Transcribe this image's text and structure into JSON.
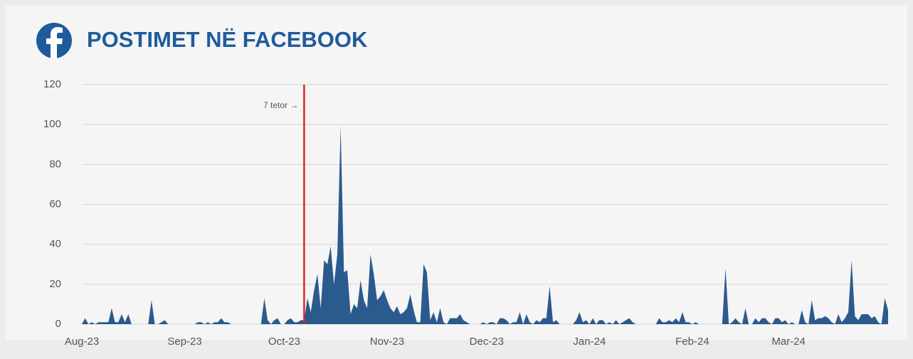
{
  "chart_data": {
    "type": "area",
    "title": "POSTIMET NË FACEBOOK",
    "categories": [
      "Aug-23",
      null,
      null,
      null,
      null,
      null,
      null,
      null,
      null,
      null,
      null,
      null,
      null,
      null,
      null,
      null,
      null,
      null,
      null,
      null,
      null,
      null,
      null,
      null,
      null,
      null,
      null,
      null,
      null,
      null,
      null,
      "Sep-23",
      null,
      null,
      null,
      null,
      null,
      null,
      null,
      null,
      null,
      null,
      null,
      null,
      null,
      null,
      null,
      null,
      null,
      null,
      null,
      null,
      null,
      null,
      null,
      null,
      null,
      null,
      null,
      null,
      null,
      "Oct-23",
      null,
      null,
      null,
      null,
      null,
      null,
      null,
      null,
      null,
      null,
      null,
      null,
      null,
      null,
      null,
      null,
      null,
      null,
      null,
      null,
      null,
      null,
      null,
      null,
      null,
      null,
      null,
      null,
      null,
      null,
      "Nov-23",
      null,
      null,
      null,
      null,
      null,
      null,
      null,
      null,
      null,
      null,
      null,
      null,
      null,
      null,
      null,
      null,
      null,
      null,
      null,
      null,
      null,
      null,
      null,
      null,
      null,
      null,
      null,
      null,
      null,
      "Dec-23",
      null,
      null,
      null,
      null,
      null,
      null,
      null,
      null,
      null,
      null,
      null,
      null,
      null,
      null,
      null,
      null,
      null,
      null,
      null,
      null,
      null,
      null,
      null,
      null,
      null,
      null,
      null,
      null,
      null,
      null,
      "Jan-24",
      null,
      null,
      null,
      null,
      null,
      null,
      null,
      null,
      null,
      null,
      null,
      null,
      null,
      null,
      null,
      null,
      null,
      null,
      null,
      null,
      null,
      null,
      null,
      null,
      null,
      null,
      null,
      null,
      null,
      null,
      "Feb-24",
      null,
      null,
      null,
      null,
      null,
      null,
      null,
      null,
      null,
      null,
      null,
      null,
      null,
      null,
      null,
      null,
      null,
      null,
      null,
      null,
      null,
      null,
      null,
      null,
      null,
      null,
      null,
      null,
      "Mar-24",
      null,
      null,
      null,
      null,
      null,
      null,
      null,
      null,
      null,
      null,
      null,
      null,
      null,
      null,
      null,
      null,
      null,
      null,
      null,
      null,
      null,
      null,
      null,
      null,
      null,
      null,
      null,
      null,
      null,
      null
    ],
    "series": [
      {
        "color": "#2b5a8e",
        "values": [
          0,
          3,
          0,
          1,
          0,
          1,
          1,
          1,
          1,
          8,
          1,
          1,
          5,
          1,
          5,
          0,
          0,
          0,
          0,
          0,
          0,
          12,
          0,
          0,
          1,
          2,
          0,
          0,
          0,
          0,
          0,
          0,
          0,
          0,
          0,
          1,
          1,
          0,
          1,
          0,
          1,
          1,
          3,
          1,
          1,
          0,
          0,
          0,
          0,
          0,
          0,
          0,
          0,
          0,
          0,
          13,
          2,
          0,
          2,
          3,
          0,
          0,
          2,
          3,
          1,
          1,
          2,
          2,
          13,
          6,
          17,
          25,
          8,
          32,
          30,
          39,
          20,
          35,
          99,
          26,
          27,
          5,
          10,
          8,
          22,
          12,
          8,
          35,
          25,
          12,
          14,
          17,
          12,
          8,
          6,
          9,
          5,
          6,
          8,
          15,
          7,
          1,
          1,
          30,
          26,
          2,
          6,
          1,
          8,
          1,
          0,
          3,
          3,
          3,
          5,
          2,
          1,
          0,
          0,
          0,
          0,
          1,
          0,
          1,
          1,
          0,
          3,
          3,
          2,
          0,
          1,
          1,
          6,
          0,
          5,
          1,
          0,
          2,
          1,
          3,
          3,
          19,
          1,
          2,
          0,
          0,
          0,
          0,
          0,
          2,
          6,
          1,
          2,
          0,
          3,
          0,
          2,
          2,
          0,
          1,
          0,
          2,
          0,
          1,
          2,
          3,
          1,
          0,
          0,
          0,
          0,
          0,
          0,
          0,
          3,
          1,
          1,
          2,
          1,
          3,
          1,
          6,
          1,
          1,
          0,
          1,
          0,
          0,
          0,
          0,
          0,
          0,
          0,
          0,
          28,
          0,
          1,
          3,
          1,
          0,
          8,
          0,
          0,
          3,
          1,
          3,
          3,
          1,
          0,
          3,
          3,
          1,
          2,
          0,
          1,
          0,
          0,
          7,
          1,
          0,
          12,
          2,
          3,
          3,
          4,
          3,
          1,
          0,
          5,
          1,
          3,
          6,
          32,
          4,
          2,
          5,
          5,
          5,
          3,
          4,
          1,
          0,
          13,
          7
        ]
      }
    ],
    "ylim": [
      0,
      120
    ],
    "yticks": [
      0,
      20,
      40,
      60,
      80,
      100,
      120
    ],
    "grid": true,
    "annotations": [
      {
        "text": "7 tetor →",
        "index": 67,
        "color": "#e0242b"
      }
    ]
  }
}
